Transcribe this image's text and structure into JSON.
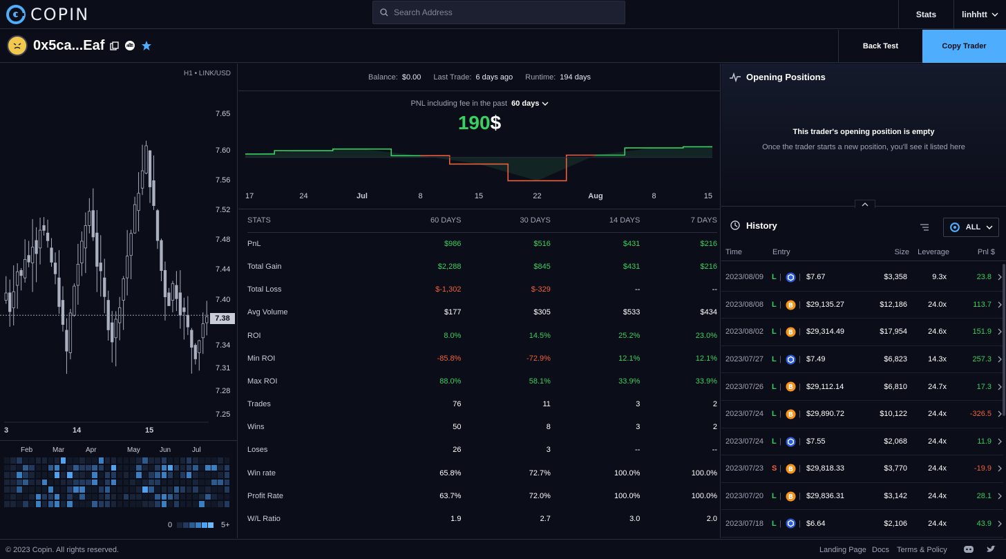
{
  "header": {
    "logo_text": "COPIN",
    "search_placeholder": "Search Address",
    "stats_label": "Stats",
    "username": "linhhtt"
  },
  "trader": {
    "address": "0x5ca...Eaf",
    "back_test_label": "Back Test",
    "copy_trader_label": "Copy Trader"
  },
  "candle_chart": {
    "pair_label": "H1 • LINK/USD",
    "y_ticks": [
      "7.65",
      "7.60",
      "7.56",
      "7.52",
      "7.48",
      "7.44",
      "7.40",
      "7.34",
      "7.31",
      "7.28",
      "7.25"
    ],
    "current_price": "7.38",
    "x_ticks": [
      "3",
      "14",
      "15"
    ]
  },
  "heatmap": {
    "months": [
      "Feb",
      "Mar",
      "Apr",
      "May",
      "Jun",
      "Jul"
    ],
    "legend_min": "0",
    "legend_max": "5+"
  },
  "status": {
    "balance_label": "Balance:",
    "balance_value": "$0.00",
    "last_trade_label": "Last Trade:",
    "last_trade_value": "6 days ago",
    "runtime_label": "Runtime:",
    "runtime_value": "194 days"
  },
  "pnl": {
    "caption": "PNL including fee in the past",
    "period": "60 days",
    "value": "190",
    "currency": "$",
    "x_ticks": [
      "17",
      "24",
      "Jul",
      "8",
      "15",
      "22",
      "Aug",
      "8",
      "15"
    ]
  },
  "chart_data": {
    "type": "line",
    "title": "",
    "x": [
      "17",
      "24",
      "Jul",
      "8",
      "15",
      "22",
      "Aug",
      "8",
      "15"
    ],
    "series": [
      {
        "values": [
          60,
          120,
          150,
          30,
          -120,
          -420,
          40,
          170,
          190
        ]
      }
    ],
    "xlabel": "",
    "ylabel": ""
  },
  "stats_table": {
    "headers": [
      "STATS",
      "60 DAYS",
      "30 DAYS",
      "14 DAYS",
      "7 DAYS"
    ],
    "rows": [
      {
        "label": "PnL",
        "values": [
          "$986",
          "$516",
          "$431",
          "$216"
        ],
        "tone": [
          "pos",
          "pos",
          "pos",
          "pos"
        ]
      },
      {
        "label": "Total Gain",
        "values": [
          "$2,288",
          "$845",
          "$431",
          "$216"
        ],
        "tone": [
          "pos",
          "pos",
          "pos",
          "pos"
        ]
      },
      {
        "label": "Total Loss",
        "values": [
          "$-1,302",
          "$-329",
          "--",
          "--"
        ],
        "tone": [
          "neg",
          "neg",
          "wht",
          "wht"
        ]
      },
      {
        "label": "Avg Volume",
        "values": [
          "$177",
          "$305",
          "$533",
          "$434"
        ],
        "tone": [
          "wht",
          "wht",
          "wht",
          "wht"
        ]
      },
      {
        "label": "ROI",
        "values": [
          "8.0%",
          "14.5%",
          "25.2%",
          "23.0%"
        ],
        "tone": [
          "pos",
          "pos",
          "pos",
          "pos"
        ]
      },
      {
        "label": "Min ROI",
        "values": [
          "-85.8%",
          "-72.9%",
          "12.1%",
          "12.1%"
        ],
        "tone": [
          "neg",
          "neg",
          "pos",
          "pos"
        ]
      },
      {
        "label": "Max ROI",
        "values": [
          "88.0%",
          "58.1%",
          "33.9%",
          "33.9%"
        ],
        "tone": [
          "pos",
          "pos",
          "pos",
          "pos"
        ]
      },
      {
        "label": "Trades",
        "values": [
          "76",
          "11",
          "3",
          "2"
        ],
        "tone": [
          "wht",
          "wht",
          "wht",
          "wht"
        ]
      },
      {
        "label": "Wins",
        "values": [
          "50",
          "8",
          "3",
          "2"
        ],
        "tone": [
          "wht",
          "wht",
          "wht",
          "wht"
        ]
      },
      {
        "label": "Loses",
        "values": [
          "26",
          "3",
          "--",
          "--"
        ],
        "tone": [
          "wht",
          "wht",
          "wht",
          "wht"
        ]
      },
      {
        "label": "Win rate",
        "values": [
          "65.8%",
          "72.7%",
          "100.0%",
          "100.0%"
        ],
        "tone": [
          "wht",
          "wht",
          "wht",
          "wht"
        ]
      },
      {
        "label": "Profit Rate",
        "values": [
          "63.7%",
          "72.0%",
          "100.0%",
          "100.0%"
        ],
        "tone": [
          "wht",
          "wht",
          "wht",
          "wht"
        ]
      },
      {
        "label": "W/L Ratio",
        "values": [
          "1.9",
          "2.7",
          "3.0",
          "2.0"
        ],
        "tone": [
          "wht",
          "wht",
          "wht",
          "wht"
        ]
      }
    ]
  },
  "opening_positions": {
    "title": "Opening Positions",
    "empty_title": "This trader's opening position is empty",
    "empty_desc": "Once the trader starts a new position, you'll see it listed here"
  },
  "history": {
    "title": "History",
    "filter_label": "ALL",
    "columns": [
      "Time",
      "Entry",
      "Size",
      "Leverage",
      "Pnl $"
    ],
    "rows": [
      {
        "time": "2023/08/09",
        "side": "L",
        "asset": "link",
        "entry": "$7.67",
        "size": "$3,358",
        "leverage": "9.3x",
        "pnl": "23.8",
        "tone": "pos"
      },
      {
        "time": "2023/08/08",
        "side": "L",
        "asset": "btc",
        "entry": "$29,135.27",
        "size": "$12,186",
        "leverage": "24.0x",
        "pnl": "113.7",
        "tone": "pos"
      },
      {
        "time": "2023/08/02",
        "side": "L",
        "asset": "btc",
        "entry": "$29,314.49",
        "size": "$17,954",
        "leverage": "24.6x",
        "pnl": "151.9",
        "tone": "pos"
      },
      {
        "time": "2023/07/27",
        "side": "L",
        "asset": "link",
        "entry": "$7.49",
        "size": "$6,823",
        "leverage": "14.3x",
        "pnl": "257.3",
        "tone": "pos"
      },
      {
        "time": "2023/07/26",
        "side": "L",
        "asset": "btc",
        "entry": "$29,112.14",
        "size": "$6,810",
        "leverage": "24.7x",
        "pnl": "17.3",
        "tone": "pos"
      },
      {
        "time": "2023/07/24",
        "side": "L",
        "asset": "btc",
        "entry": "$29,890.72",
        "size": "$10,122",
        "leverage": "24.4x",
        "pnl": "-326.5",
        "tone": "neg"
      },
      {
        "time": "2023/07/24",
        "side": "L",
        "asset": "link",
        "entry": "$7.55",
        "size": "$2,068",
        "leverage": "24.4x",
        "pnl": "11.9",
        "tone": "pos"
      },
      {
        "time": "2023/07/23",
        "side": "S",
        "asset": "btc",
        "entry": "$29,818.33",
        "size": "$3,770",
        "leverage": "24.4x",
        "pnl": "-19.9",
        "tone": "neg"
      },
      {
        "time": "2023/07/20",
        "side": "L",
        "asset": "btc",
        "entry": "$29,836.31",
        "size": "$3,142",
        "leverage": "24.4x",
        "pnl": "28.1",
        "tone": "pos"
      },
      {
        "time": "2023/07/18",
        "side": "L",
        "asset": "link",
        "entry": "$6.64",
        "size": "$2,106",
        "leverage": "24.4x",
        "pnl": "43.9",
        "tone": "pos"
      }
    ]
  },
  "footer": {
    "copyright": "© 2023 Copin. All rights reserved.",
    "links": [
      "Landing Page",
      "Docs",
      "Terms & Policy"
    ]
  },
  "colors": {
    "positive": "#38d060",
    "negative": "#f0603e",
    "accent": "#4eaefd",
    "background": "#0b0e18"
  }
}
